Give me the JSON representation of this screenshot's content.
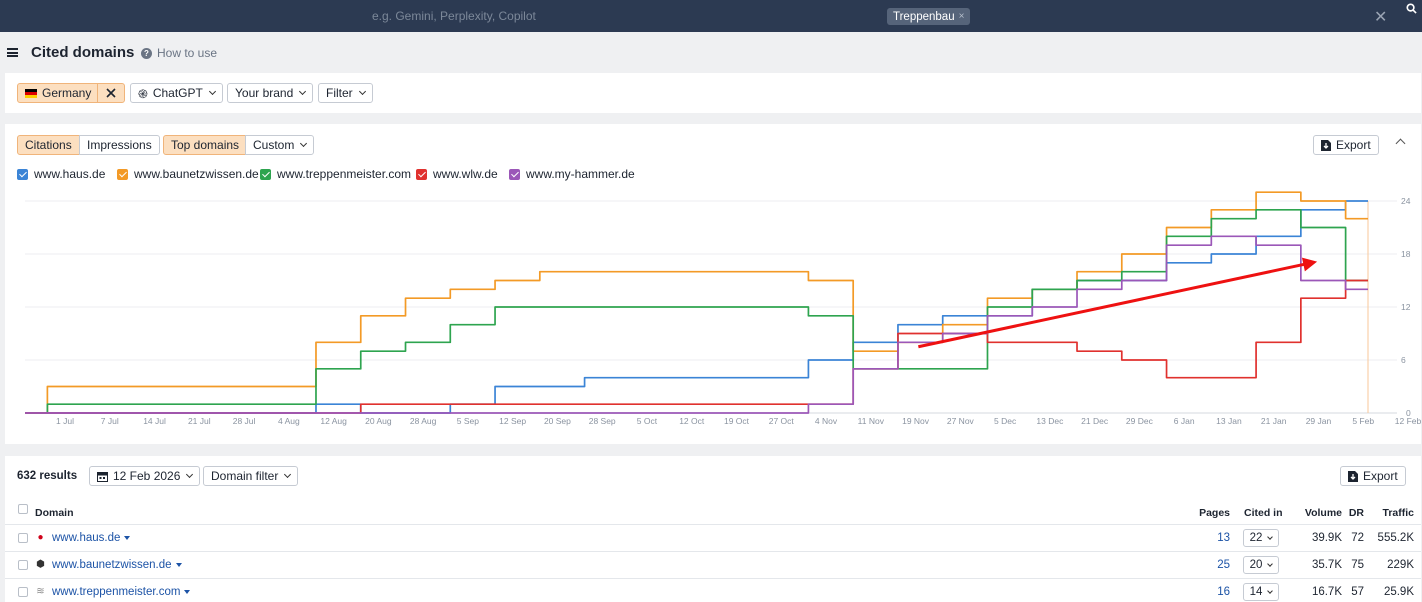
{
  "topbar": {
    "prompt_placeholder": "e.g. Gemini, Perplexity, Copilot",
    "keyword_tag": "Treppenbau",
    "tag_close": "×",
    "close_glyph": "✕"
  },
  "header": {
    "title": "Cited domains",
    "help_label": "How to use"
  },
  "filters": {
    "country": "Germany",
    "ai": "ChatGPT",
    "brand": "Your brand",
    "filter": "Filter"
  },
  "chart_panel": {
    "tabs": [
      "Citations",
      "Impressions"
    ],
    "modes": [
      "Top domains",
      "Custom"
    ],
    "export_label": "Export"
  },
  "chart_data": {
    "type": "line",
    "x": [
      "1 Jul",
      "7 Jul",
      "14 Jul",
      "21 Jul",
      "28 Jul",
      "4 Aug",
      "12 Aug",
      "20 Aug",
      "28 Aug",
      "5 Sep",
      "12 Sep",
      "20 Sep",
      "28 Sep",
      "5 Oct",
      "12 Oct",
      "19 Oct",
      "27 Oct",
      "4 Nov",
      "11 Nov",
      "19 Nov",
      "27 Nov",
      "5 Dec",
      "13 Dec",
      "21 Dec",
      "29 Dec",
      "6 Jan",
      "13 Jan",
      "21 Jan",
      "29 Jan",
      "5 Feb",
      "12 Feb"
    ],
    "y_ticks": [
      0,
      6,
      12,
      18,
      24
    ],
    "ylim": [
      0,
      24
    ],
    "grid": true,
    "legend_position": "top-left",
    "series": [
      {
        "name": "www.haus.de",
        "color": "#3b84d6",
        "values": [
          0,
          0,
          0,
          0,
          0,
          0,
          0,
          1,
          0,
          0,
          1,
          3,
          3,
          4,
          4,
          4,
          4,
          4,
          6,
          8,
          10,
          11,
          11,
          14,
          15,
          15,
          17,
          18,
          20,
          23,
          24
        ]
      },
      {
        "name": "www.baunetzwissen.de",
        "color": "#f39a26",
        "values": [
          0,
          3,
          3,
          3,
          3,
          3,
          3,
          8,
          11,
          13,
          14,
          15,
          16,
          16,
          16,
          16,
          16,
          16,
          15,
          7,
          8,
          10,
          13,
          14,
          16,
          18,
          21,
          23,
          25,
          24,
          22
        ]
      },
      {
        "name": "www.treppenmeister.com",
        "color": "#2ea44f",
        "values": [
          0,
          1,
          1,
          1,
          1,
          1,
          1,
          5,
          7,
          8,
          10,
          12,
          12,
          12,
          12,
          12,
          12,
          12,
          11,
          5,
          5,
          5,
          12,
          14,
          15,
          16,
          20,
          22,
          23,
          21,
          15
        ]
      },
      {
        "name": "www.wlw.de",
        "color": "#e0312e",
        "values": [
          0,
          0,
          0,
          0,
          0,
          0,
          0,
          0,
          1,
          1,
          1,
          1,
          1,
          1,
          1,
          1,
          1,
          1,
          1,
          5,
          9,
          9,
          8,
          8,
          7,
          6,
          4,
          4,
          8,
          13,
          15
        ]
      },
      {
        "name": "www.my-hammer.de",
        "color": "#9b57b8",
        "values": [
          0,
          0,
          0,
          0,
          0,
          0,
          0,
          0,
          0,
          0,
          0,
          0,
          0,
          0,
          0,
          0,
          0,
          0,
          1,
          5,
          8,
          9,
          11,
          12,
          14,
          15,
          19,
          20,
          19,
          15,
          14
        ]
      }
    ],
    "annotation": "red trend arrow from 27 Nov to 5 Feb"
  },
  "table": {
    "results_label": "632 results",
    "date": "12 Feb 2026",
    "domain_filter": "Domain filter",
    "export_label": "Export",
    "columns": [
      "Domain",
      "Pages",
      "Cited in",
      "Volume",
      "DR",
      "Traffic"
    ],
    "rows": [
      {
        "domain": "www.haus.de",
        "pages": "13",
        "cited": "22",
        "volume": "39.9K",
        "dr": "72",
        "traffic": "555.2K",
        "fav": "●",
        "favcolor": "#d0021b"
      },
      {
        "domain": "www.baunetzwissen.de",
        "pages": "25",
        "cited": "20",
        "volume": "35.7K",
        "dr": "75",
        "traffic": "229K",
        "fav": "⬢",
        "favcolor": "#333333"
      },
      {
        "domain": "www.treppenmeister.com",
        "pages": "16",
        "cited": "14",
        "volume": "16.7K",
        "dr": "57",
        "traffic": "25.9K",
        "fav": "≋",
        "favcolor": "#888888"
      }
    ]
  }
}
